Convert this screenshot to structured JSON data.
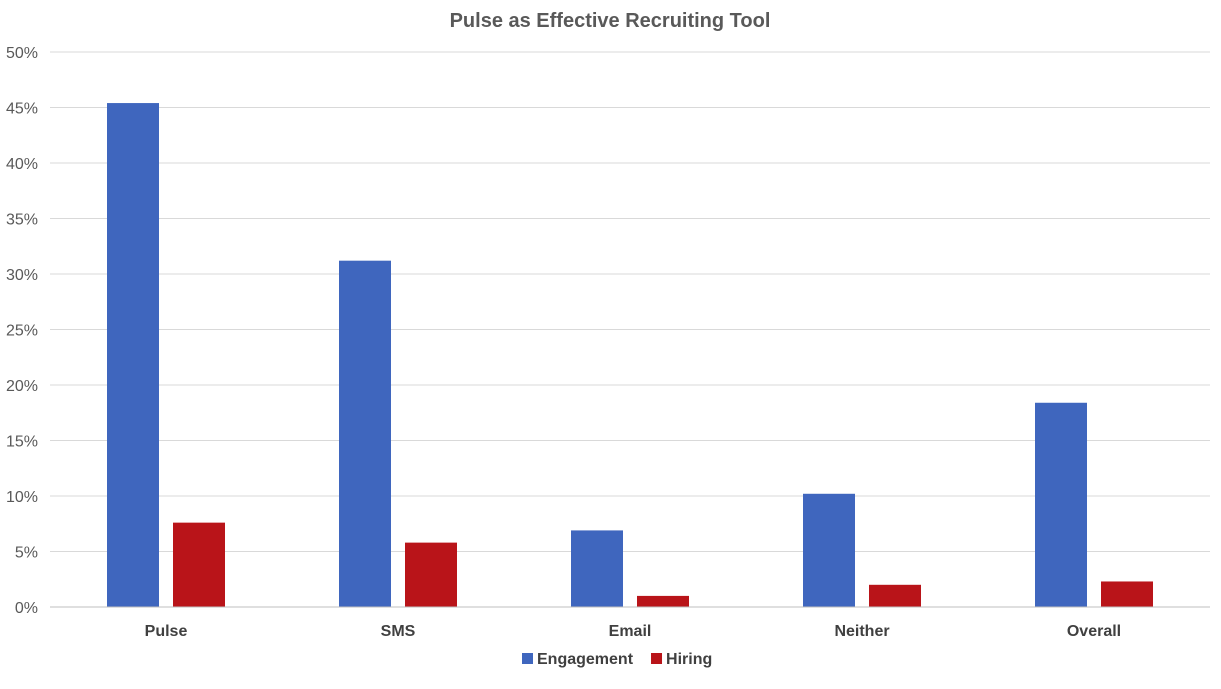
{
  "chart_data": {
    "type": "bar",
    "title": "Pulse as Effective Recruiting Tool",
    "xlabel": "",
    "ylabel": "",
    "categories": [
      "Pulse",
      "SMS",
      "Email",
      "Neither",
      "Overall"
    ],
    "series": [
      {
        "name": "Engagement",
        "values": [
          45.4,
          31.2,
          6.9,
          10.2,
          18.4
        ],
        "color": "#3F66BE"
      },
      {
        "name": "Hiring",
        "values": [
          7.6,
          5.8,
          1.0,
          2.0,
          2.3
        ],
        "color": "#B91419"
      }
    ],
    "ylim": [
      0,
      50
    ],
    "yticks": [
      "0%",
      "5%",
      "10%",
      "15%",
      "20%",
      "25%",
      "30%",
      "35%",
      "40%",
      "45%",
      "50%"
    ],
    "grid": true,
    "legend_position": "bottom",
    "colors": {
      "grid": "#D9D9D9",
      "axis": "#BFBFBF",
      "text": "#595959",
      "category_text": "#404040"
    }
  }
}
